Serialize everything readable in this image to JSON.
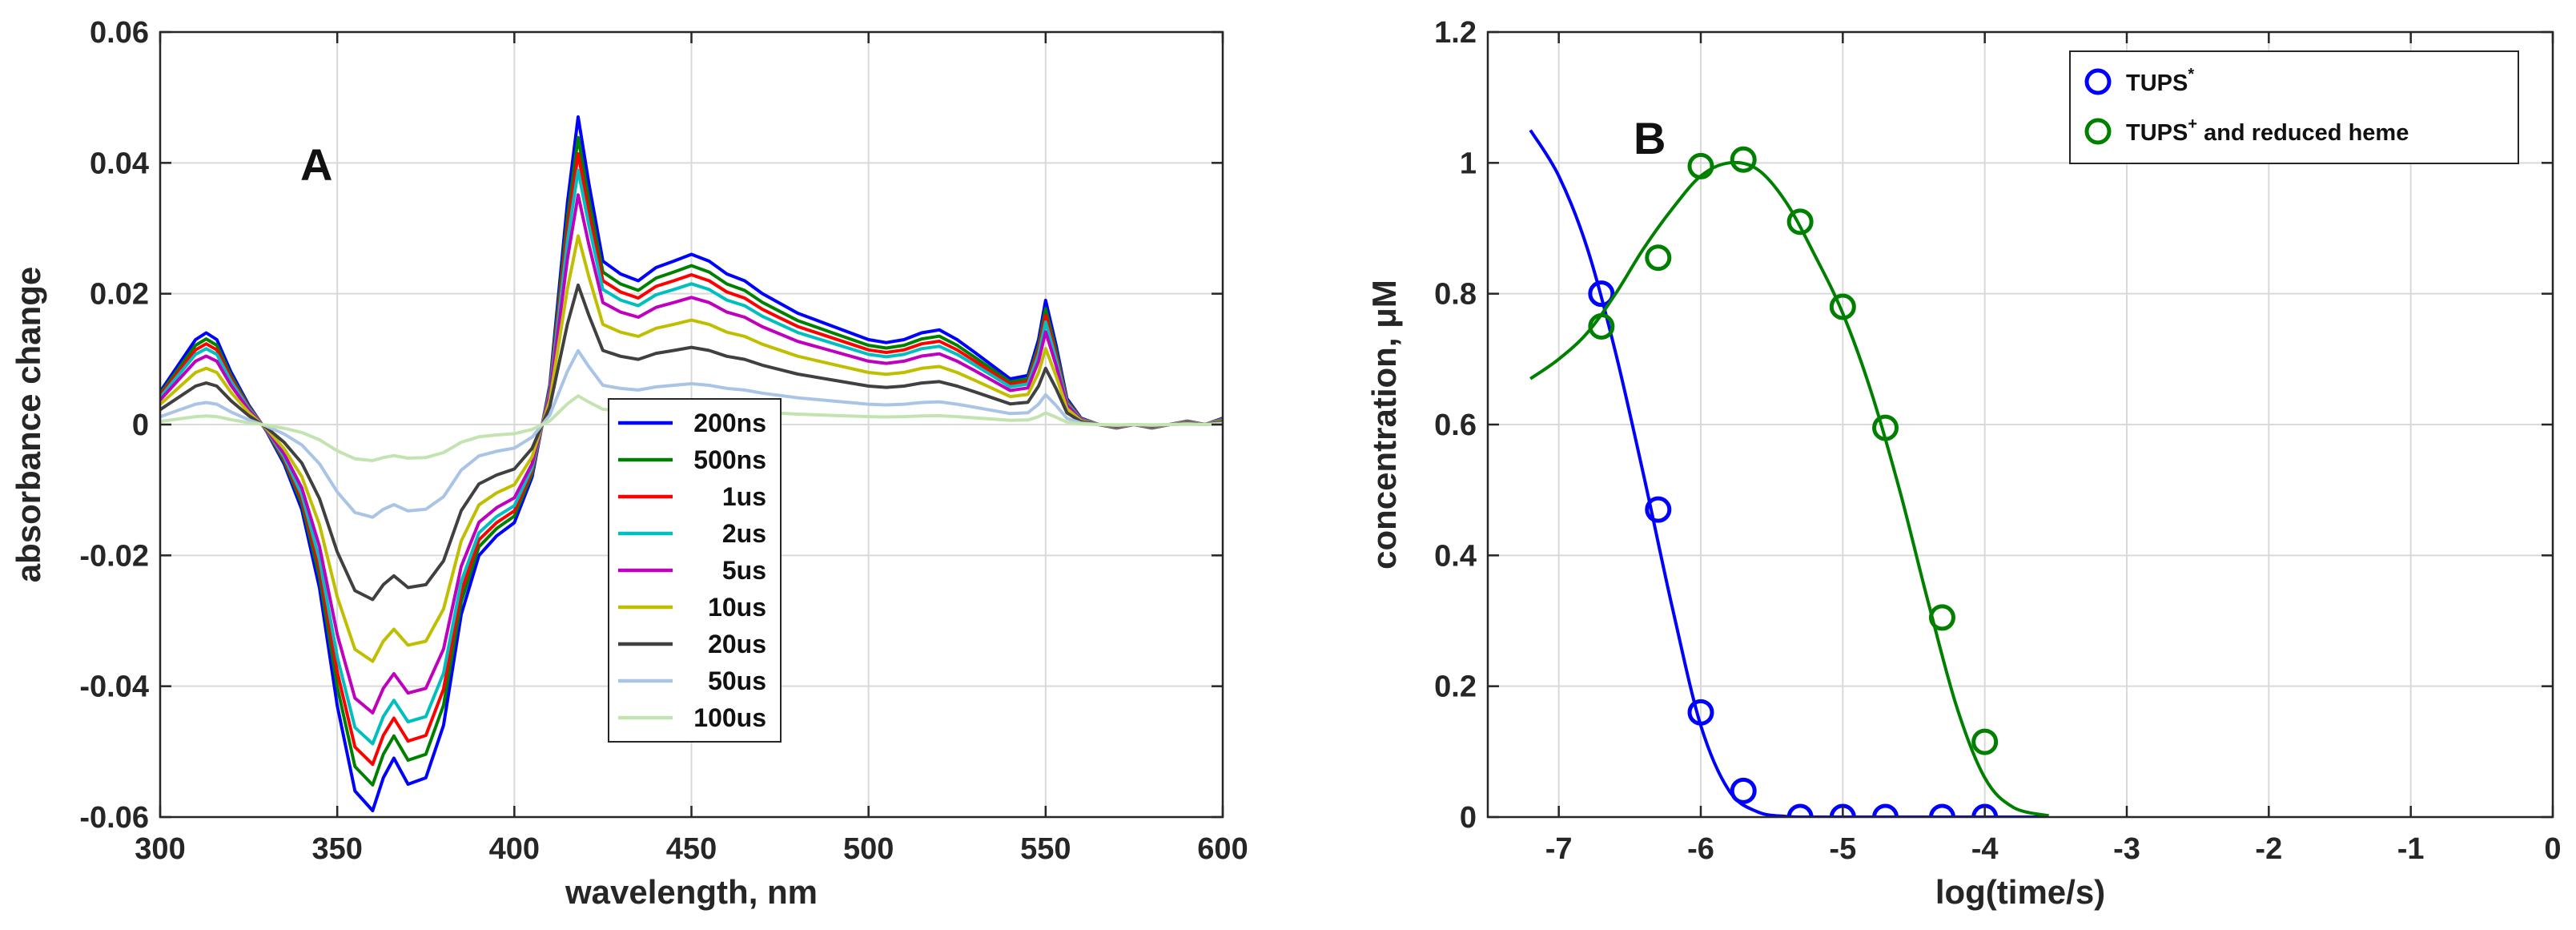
{
  "chart_data": [
    {
      "panel": "A",
      "type": "line",
      "title": "",
      "panel_label": "A",
      "xlabel": "wavelength, nm",
      "ylabel": "absorbance change",
      "xlim": [
        300,
        600
      ],
      "ylim": [
        -0.06,
        0.06
      ],
      "xticks": [
        300,
        350,
        400,
        450,
        500,
        550,
        600
      ],
      "xtick_labels": [
        "300",
        "350",
        "400",
        "450",
        "500",
        "550",
        "600"
      ],
      "yticks": [
        -0.06,
        -0.04,
        -0.02,
        0,
        0.02,
        0.04,
        0.06
      ],
      "ytick_labels": [
        "-0.06",
        "-0.04",
        "-0.02",
        "0",
        "0.02",
        "0.04",
        "0.06"
      ],
      "grid": true,
      "legend_position": "center-right",
      "x": [
        300,
        305,
        310,
        313,
        316,
        320,
        325,
        330,
        335,
        340,
        345,
        350,
        355,
        360,
        363,
        366,
        370,
        375,
        380,
        385,
        390,
        395,
        400,
        405,
        410,
        415,
        418,
        421,
        425,
        430,
        435,
        440,
        445,
        450,
        455,
        460,
        465,
        470,
        475,
        480,
        490,
        500,
        505,
        510,
        515,
        520,
        525,
        530,
        535,
        540,
        545,
        548,
        550,
        553,
        556,
        560,
        565,
        570,
        575,
        580,
        585,
        590,
        595,
        600
      ],
      "base_shape": [
        0.0067,
        0.012,
        0.0173,
        0.0187,
        0.0173,
        0.0107,
        0.004,
        -0.0013,
        -0.008,
        -0.0173,
        -0.0333,
        -0.0573,
        -0.0747,
        -0.0787,
        -0.072,
        -0.068,
        -0.0733,
        -0.072,
        -0.0613,
        -0.0387,
        -0.0267,
        -0.0227,
        -0.02,
        -0.0107,
        0.008,
        0.0453,
        0.0627,
        0.0493,
        0.0333,
        0.0307,
        0.0293,
        0.032,
        0.0333,
        0.0347,
        0.0333,
        0.0307,
        0.0293,
        0.0267,
        0.0247,
        0.0227,
        0.02,
        0.0173,
        0.0167,
        0.0173,
        0.0187,
        0.0193,
        0.0173,
        0.0147,
        0.012,
        0.0093,
        0.01,
        0.0173,
        0.0253,
        0.016,
        0.0053,
        0.0013,
        0.0,
        -0.0007,
        0.0,
        -0.0007,
        0.0,
        0.0007,
        0.0,
        0.0013
      ],
      "series": [
        {
          "name": "200ns",
          "color": "#0000ff",
          "scale": 0.75
        },
        {
          "name": "500ns",
          "color": "#008000",
          "scale": 0.7
        },
        {
          "name": "1us",
          "color": "#ff0000",
          "scale": 0.66
        },
        {
          "name": "2us",
          "color": "#00bfbf",
          "scale": 0.62
        },
        {
          "name": "5us",
          "color": "#bf00bf",
          "scale": 0.56
        },
        {
          "name": "10us",
          "color": "#bfbf00",
          "scale": 0.46
        },
        {
          "name": "20us",
          "color": "#404040",
          "scale": 0.34
        },
        {
          "name": "50us",
          "color": "#a9c4e4",
          "scale": 0.18
        },
        {
          "name": "100us",
          "color": "#c3e3b1",
          "scale": 0.07
        }
      ]
    },
    {
      "panel": "B",
      "type": "scatter",
      "title": "",
      "panel_label": "B",
      "xlabel": "log(time/s)",
      "ylabel": "concentration, μM",
      "xlim": [
        -7.5,
        0
      ],
      "ylim": [
        0,
        1.2
      ],
      "xticks": [
        -7,
        -6,
        -5,
        -4,
        -3,
        -2,
        -1,
        0
      ],
      "xtick_labels": [
        "-7",
        "-6",
        "-5",
        "-4",
        "-3",
        "-2",
        "-1",
        "0"
      ],
      "yticks": [
        0,
        0.2,
        0.4,
        0.6,
        0.8,
        1,
        1.2
      ],
      "ytick_labels": [
        "0",
        "0.2",
        "0.4",
        "0.6",
        "0.8",
        "1",
        "1.2"
      ],
      "grid": true,
      "legend_position": "top-right",
      "series": [
        {
          "name": "TUPS",
          "name_sup": "*",
          "legend_suffix": "",
          "color": "#0000ff",
          "points_x": [
            -6.7,
            -6.3,
            -6.0,
            -5.7,
            -5.3,
            -5.0,
            -4.7,
            -4.3,
            -4.0
          ],
          "points_y": [
            0.8,
            0.47,
            0.16,
            0.04,
            0.0,
            0.0,
            0.0,
            0.0,
            0.0
          ],
          "fit_x": [
            -7.2,
            -7.0,
            -6.8,
            -6.6,
            -6.4,
            -6.2,
            -6.0,
            -5.8,
            -5.6,
            -5.4,
            -5.2,
            -5.0,
            -4.8,
            -4.6,
            -4.4,
            -4.2,
            -4.0,
            -3.8,
            -3.55
          ],
          "fit_y": [
            1.05,
            0.98,
            0.87,
            0.71,
            0.52,
            0.32,
            0.14,
            0.04,
            0.008,
            0.001,
            0,
            0,
            0,
            0,
            0,
            0,
            0,
            0,
            0
          ]
        },
        {
          "name": "TUPS",
          "name_sup": "+",
          "legend_suffix": " and reduced heme",
          "color": "#008000",
          "points_x": [
            -6.7,
            -6.3,
            -6.0,
            -5.7,
            -5.3,
            -5.0,
            -4.7,
            -4.3,
            -4.0
          ],
          "points_y": [
            0.75,
            0.855,
            0.995,
            1.005,
            0.91,
            0.78,
            0.595,
            0.305,
            0.115
          ],
          "fit_x": [
            -7.2,
            -7.0,
            -6.8,
            -6.6,
            -6.4,
            -6.2,
            -6.0,
            -5.8,
            -5.6,
            -5.4,
            -5.2,
            -5.0,
            -4.8,
            -4.6,
            -4.4,
            -4.2,
            -4.0,
            -3.8,
            -3.55
          ],
          "fit_y": [
            0.67,
            0.7,
            0.74,
            0.8,
            0.87,
            0.93,
            0.98,
            1.0,
            0.99,
            0.94,
            0.86,
            0.77,
            0.65,
            0.5,
            0.33,
            0.17,
            0.06,
            0.015,
            0.002
          ]
        }
      ]
    }
  ]
}
